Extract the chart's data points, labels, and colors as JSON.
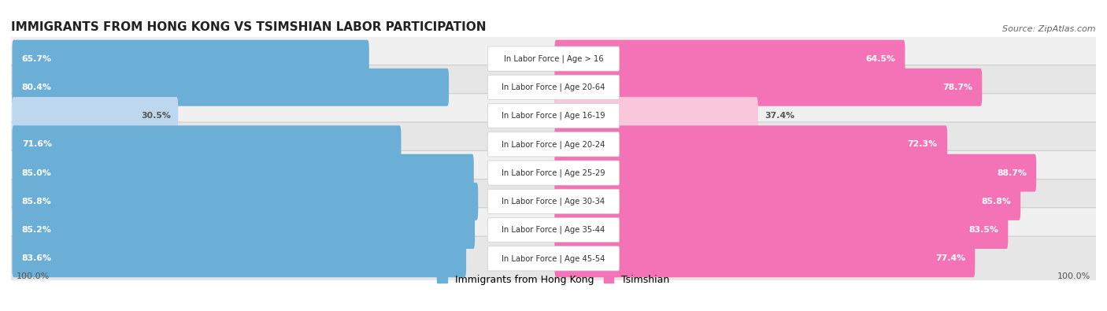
{
  "title": "IMMIGRANTS FROM HONG KONG VS TSIMSHIAN LABOR PARTICIPATION",
  "source": "Source: ZipAtlas.com",
  "categories": [
    "In Labor Force | Age > 16",
    "In Labor Force | Age 20-64",
    "In Labor Force | Age 16-19",
    "In Labor Force | Age 20-24",
    "In Labor Force | Age 25-29",
    "In Labor Force | Age 30-34",
    "In Labor Force | Age 35-44",
    "In Labor Force | Age 45-54"
  ],
  "hk_values": [
    65.7,
    80.4,
    30.5,
    71.6,
    85.0,
    85.8,
    85.2,
    83.6
  ],
  "ts_values": [
    64.5,
    78.7,
    37.4,
    72.3,
    88.7,
    85.8,
    83.5,
    77.4
  ],
  "hk_color": "#6BAED6",
  "hk_color_light": "#BDD7EE",
  "ts_color": "#F472B6",
  "ts_color_light": "#F9C6DC",
  "background_color": "#FFFFFF",
  "legend_hk": "Immigrants from Hong Kong",
  "legend_ts": "Tsimshian",
  "threshold_small": 50
}
